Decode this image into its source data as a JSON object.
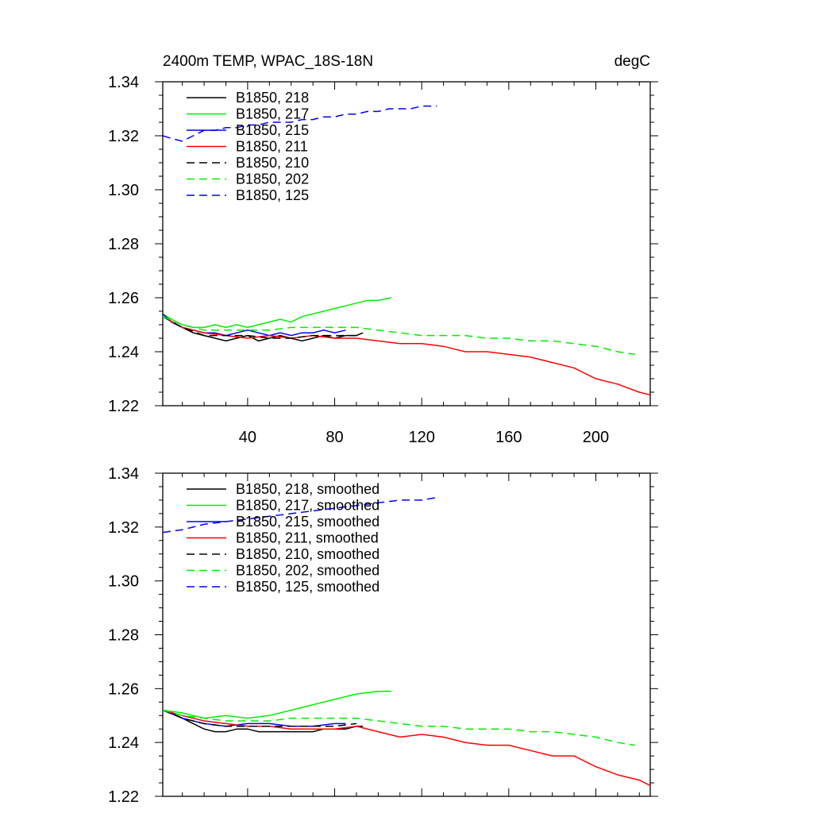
{
  "chart_data": [
    {
      "type": "line",
      "title": "2400m TEMP, WPAC_18S-18N",
      "units": "degC",
      "xlim": [
        1,
        225
      ],
      "ylim": [
        1.22,
        1.34
      ],
      "xticks": [
        40,
        80,
        120,
        160,
        200
      ],
      "xtick_labels": [
        "40",
        "80",
        "120",
        "160",
        "200"
      ],
      "yticks": [
        1.22,
        1.24,
        1.26,
        1.28,
        1.3,
        1.32,
        1.34
      ],
      "ytick_labels": [
        "1.22",
        "1.24",
        "1.26",
        "1.28",
        "1.30",
        "1.32",
        "1.34"
      ],
      "legend_position": "top-left",
      "series": [
        {
          "name": "B1850, 218",
          "color": "#000000",
          "dash": "solid",
          "x": [
            1,
            5,
            10,
            15,
            20,
            25,
            30,
            35,
            40,
            45,
            50,
            55,
            60,
            65,
            70,
            75,
            80,
            85,
            90,
            93
          ],
          "y": [
            1.254,
            1.251,
            1.249,
            1.247,
            1.246,
            1.245,
            1.244,
            1.245,
            1.246,
            1.244,
            1.245,
            1.246,
            1.245,
            1.244,
            1.245,
            1.246,
            1.245,
            1.246,
            1.246,
            1.247
          ]
        },
        {
          "name": "B1850, 217",
          "color": "#00ee00",
          "dash": "solid",
          "x": [
            1,
            5,
            10,
            15,
            20,
            25,
            30,
            35,
            40,
            45,
            50,
            55,
            60,
            65,
            70,
            75,
            80,
            85,
            90,
            95,
            100,
            106
          ],
          "y": [
            1.254,
            1.252,
            1.25,
            1.249,
            1.249,
            1.25,
            1.249,
            1.25,
            1.249,
            1.25,
            1.251,
            1.252,
            1.251,
            1.253,
            1.254,
            1.255,
            1.256,
            1.257,
            1.258,
            1.259,
            1.259,
            1.26
          ]
        },
        {
          "name": "B1850, 215",
          "color": "#0000ff",
          "dash": "solid",
          "x": [
            1,
            5,
            10,
            15,
            20,
            25,
            30,
            35,
            40,
            45,
            50,
            55,
            60,
            65,
            70,
            75,
            80,
            85
          ],
          "y": [
            1.254,
            1.251,
            1.249,
            1.248,
            1.247,
            1.247,
            1.246,
            1.247,
            1.248,
            1.247,
            1.246,
            1.247,
            1.246,
            1.247,
            1.247,
            1.248,
            1.247,
            1.248
          ]
        },
        {
          "name": "B1850, 211",
          "color": "#ff0000",
          "dash": "solid",
          "x": [
            1,
            10,
            20,
            30,
            40,
            50,
            60,
            70,
            80,
            90,
            100,
            110,
            120,
            130,
            140,
            150,
            160,
            170,
            180,
            190,
            200,
            210,
            220,
            225
          ],
          "y": [
            1.253,
            1.249,
            1.247,
            1.246,
            1.245,
            1.246,
            1.245,
            1.246,
            1.245,
            1.245,
            1.244,
            1.243,
            1.243,
            1.242,
            1.24,
            1.24,
            1.239,
            1.238,
            1.236,
            1.234,
            1.23,
            1.228,
            1.225,
            1.224
          ]
        },
        {
          "name": "B1850, 210",
          "color": "#000000",
          "dash": "dashed",
          "x": [
            1,
            10,
            20,
            30,
            40,
            50,
            60,
            70,
            80,
            90
          ],
          "y": [
            1.253,
            1.249,
            1.246,
            1.246,
            1.246,
            1.245,
            1.245,
            1.246,
            1.246,
            1.246
          ]
        },
        {
          "name": "B1850, 202",
          "color": "#00ee00",
          "dash": "dashed",
          "x": [
            1,
            10,
            20,
            30,
            40,
            50,
            60,
            70,
            80,
            90,
            100,
            110,
            120,
            130,
            140,
            150,
            160,
            170,
            180,
            190,
            200,
            210,
            218
          ],
          "y": [
            1.253,
            1.25,
            1.248,
            1.248,
            1.248,
            1.248,
            1.249,
            1.249,
            1.249,
            1.249,
            1.248,
            1.247,
            1.246,
            1.246,
            1.246,
            1.245,
            1.245,
            1.244,
            1.244,
            1.243,
            1.242,
            1.24,
            1.239
          ]
        },
        {
          "name": "B1850, 125",
          "color": "#0000ff",
          "dash": "dashed",
          "x": [
            1,
            5,
            10,
            15,
            20,
            25,
            30,
            35,
            40,
            45,
            50,
            55,
            60,
            65,
            70,
            75,
            80,
            85,
            90,
            95,
            100,
            105,
            110,
            115,
            120,
            127
          ],
          "y": [
            1.32,
            1.319,
            1.318,
            1.32,
            1.322,
            1.322,
            1.323,
            1.323,
            1.324,
            1.324,
            1.325,
            1.325,
            1.325,
            1.326,
            1.326,
            1.327,
            1.327,
            1.328,
            1.328,
            1.329,
            1.329,
            1.33,
            1.33,
            1.33,
            1.331,
            1.331
          ]
        }
      ]
    },
    {
      "type": "line",
      "xlim": [
        1,
        225
      ],
      "ylim": [
        1.22,
        1.34
      ],
      "xticks": [
        40,
        80,
        120,
        160,
        200
      ],
      "yticks": [
        1.22,
        1.24,
        1.26,
        1.28,
        1.3,
        1.32,
        1.34
      ],
      "ytick_labels": [
        "1.22",
        "1.24",
        "1.26",
        "1.28",
        "1.30",
        "1.32",
        "1.34"
      ],
      "legend_position": "top-left",
      "series": [
        {
          "name": "B1850, 218, smoothed",
          "color": "#000000",
          "dash": "solid",
          "x": [
            1,
            5,
            10,
            15,
            20,
            25,
            30,
            35,
            40,
            45,
            50,
            55,
            60,
            65,
            70,
            75,
            80,
            85,
            90,
            93
          ],
          "y": [
            1.252,
            1.251,
            1.249,
            1.247,
            1.245,
            1.244,
            1.244,
            1.245,
            1.245,
            1.244,
            1.244,
            1.244,
            1.244,
            1.244,
            1.244,
            1.245,
            1.245,
            1.245,
            1.246,
            1.246
          ]
        },
        {
          "name": "B1850, 217, smoothed",
          "color": "#00ee00",
          "dash": "solid",
          "x": [
            1,
            10,
            20,
            30,
            40,
            50,
            60,
            70,
            80,
            90,
            100,
            106
          ],
          "y": [
            1.252,
            1.251,
            1.249,
            1.25,
            1.249,
            1.25,
            1.252,
            1.254,
            1.256,
            1.258,
            1.259,
            1.259
          ]
        },
        {
          "name": "B1850, 215, smoothed",
          "color": "#0000ff",
          "dash": "solid",
          "x": [
            1,
            10,
            20,
            30,
            40,
            50,
            60,
            70,
            80,
            85
          ],
          "y": [
            1.252,
            1.249,
            1.247,
            1.246,
            1.247,
            1.247,
            1.246,
            1.246,
            1.247,
            1.247
          ]
        },
        {
          "name": "B1850, 211, smoothed",
          "color": "#ff0000",
          "dash": "solid",
          "x": [
            1,
            10,
            20,
            30,
            40,
            50,
            60,
            70,
            80,
            90,
            100,
            110,
            120,
            130,
            140,
            150,
            160,
            170,
            180,
            190,
            200,
            210,
            220,
            225
          ],
          "y": [
            1.252,
            1.25,
            1.248,
            1.247,
            1.246,
            1.246,
            1.245,
            1.245,
            1.245,
            1.246,
            1.244,
            1.242,
            1.243,
            1.242,
            1.24,
            1.239,
            1.239,
            1.237,
            1.235,
            1.235,
            1.231,
            1.228,
            1.226,
            1.224
          ]
        },
        {
          "name": "B1850, 210, smoothed",
          "color": "#000000",
          "dash": "dashed",
          "x": [
            1,
            10,
            20,
            30,
            40,
            50,
            60,
            70,
            80,
            90
          ],
          "y": [
            1.252,
            1.249,
            1.247,
            1.246,
            1.246,
            1.246,
            1.246,
            1.246,
            1.246,
            1.247
          ]
        },
        {
          "name": "B1850, 202, smoothed",
          "color": "#00ee00",
          "dash": "dashed",
          "x": [
            1,
            10,
            20,
            30,
            40,
            50,
            60,
            70,
            80,
            90,
            100,
            110,
            120,
            130,
            140,
            150,
            160,
            170,
            180,
            190,
            200,
            210,
            218
          ],
          "y": [
            1.252,
            1.25,
            1.249,
            1.248,
            1.248,
            1.248,
            1.249,
            1.249,
            1.249,
            1.249,
            1.248,
            1.247,
            1.246,
            1.246,
            1.245,
            1.245,
            1.245,
            1.244,
            1.244,
            1.243,
            1.242,
            1.24,
            1.239
          ]
        },
        {
          "name": "B1850, 125, smoothed",
          "color": "#0000ff",
          "dash": "dashed",
          "x": [
            1,
            10,
            20,
            30,
            40,
            50,
            60,
            70,
            80,
            90,
            100,
            110,
            120,
            127
          ],
          "y": [
            1.318,
            1.319,
            1.321,
            1.322,
            1.323,
            1.324,
            1.325,
            1.326,
            1.327,
            1.328,
            1.329,
            1.33,
            1.33,
            1.331
          ]
        }
      ]
    }
  ]
}
